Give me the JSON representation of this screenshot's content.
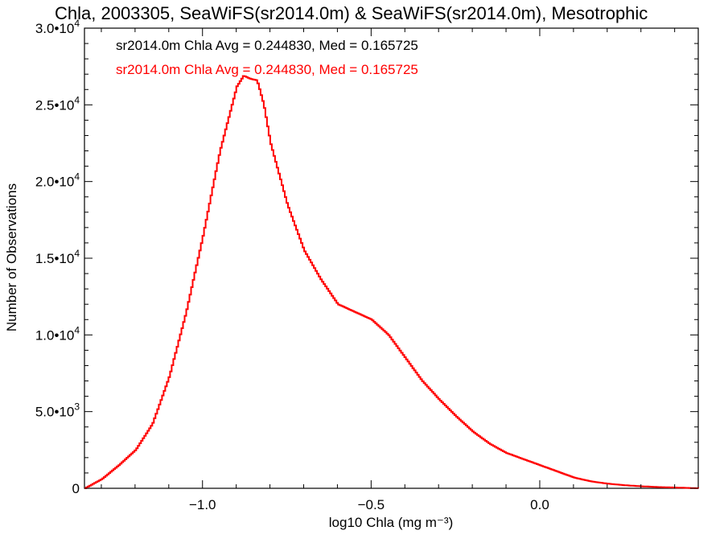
{
  "chart_data": {
    "type": "line",
    "title": "Chla, 2003305, SeaWiFS(sr2014.0m) & SeaWiFS(sr2014.0m), Mesotrophic",
    "xlabel": "log10 Chla (mg m⁻³)",
    "ylabel": "Number of Observations",
    "xlim": [
      -1.35,
      0.47
    ],
    "ylim": [
      0,
      30000
    ],
    "x_ticks": [
      {
        "value": -1.0,
        "label": "−1.0"
      },
      {
        "value": -0.5,
        "label": "−0.5"
      },
      {
        "value": 0.0,
        "label": "0.0"
      }
    ],
    "y_ticks": [
      {
        "value": 0,
        "label": "0",
        "exp": ""
      },
      {
        "value": 5000,
        "label": "5.0•10",
        "exp": "3"
      },
      {
        "value": 10000,
        "label": "1.0•10",
        "exp": "4"
      },
      {
        "value": 15000,
        "label": "1.5•10",
        "exp": "4"
      },
      {
        "value": 20000,
        "label": "2.0•10",
        "exp": "4"
      },
      {
        "value": 25000,
        "label": "2.5•10",
        "exp": "4"
      },
      {
        "value": 30000,
        "label": "3.0•10",
        "exp": "4"
      }
    ],
    "annotations": [
      {
        "text": "sr2014.0m Chla Avg = 0.244830, Med = 0.165725",
        "color": "#000000"
      },
      {
        "text": "sr2014.0m Chla Avg = 0.244830, Med = 0.165725",
        "color": "#ff0000"
      }
    ],
    "series": [
      {
        "color": "#ff0000",
        "x": [
          -1.35,
          -1.3,
          -1.25,
          -1.2,
          -1.15,
          -1.1,
          -1.05,
          -1.0,
          -0.95,
          -0.9,
          -0.88,
          -0.86,
          -0.84,
          -0.82,
          -0.8,
          -0.75,
          -0.7,
          -0.65,
          -0.6,
          -0.55,
          -0.5,
          -0.45,
          -0.4,
          -0.35,
          -0.3,
          -0.25,
          -0.2,
          -0.15,
          -0.1,
          -0.05,
          0.0,
          0.05,
          0.1,
          0.15,
          0.2,
          0.25,
          0.3,
          0.35,
          0.4,
          0.47
        ],
        "y": [
          0,
          600,
          1500,
          2500,
          4200,
          7300,
          11500,
          16500,
          22000,
          26200,
          26900,
          26700,
          26600,
          25000,
          22500,
          18500,
          15500,
          13600,
          12000,
          11500,
          11000,
          10000,
          8500,
          7000,
          5800,
          4700,
          3700,
          2900,
          2300,
          1900,
          1500,
          1100,
          700,
          450,
          300,
          200,
          130,
          80,
          50,
          0
        ]
      }
    ]
  }
}
